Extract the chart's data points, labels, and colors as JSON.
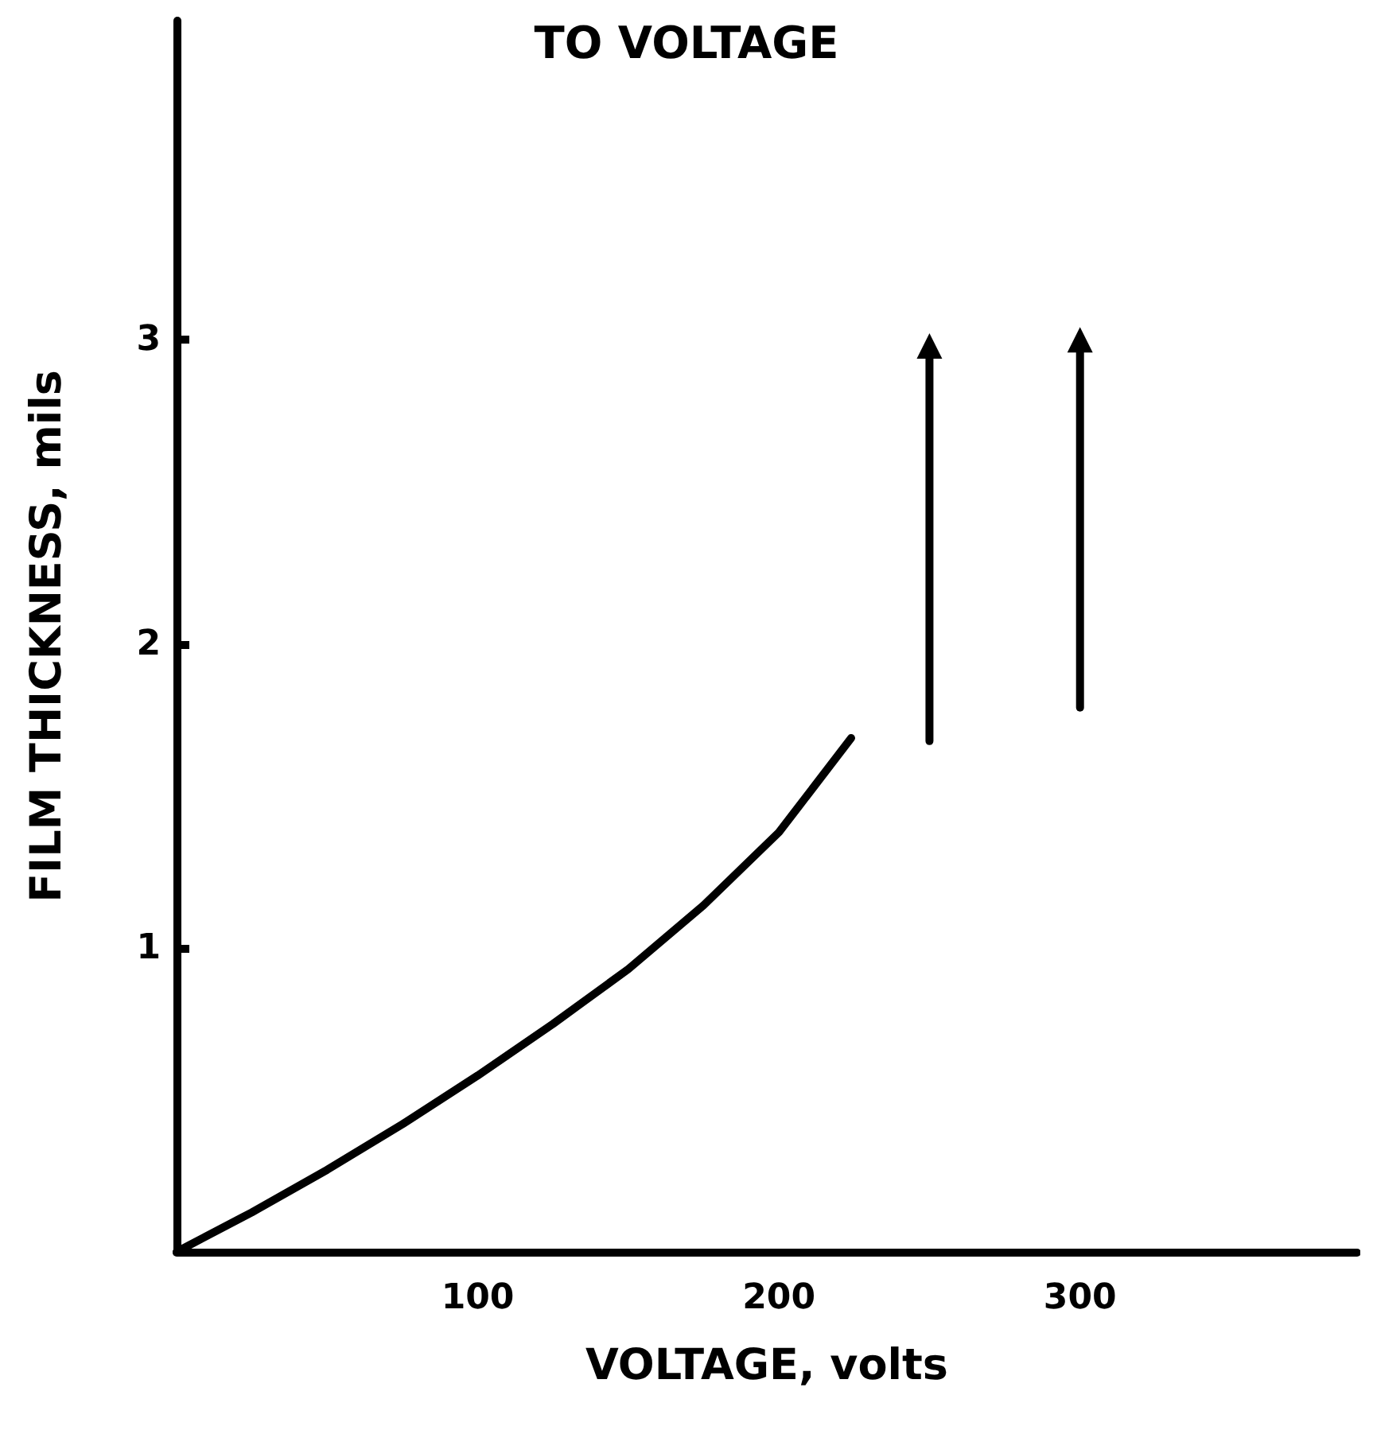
{
  "chart_data": {
    "type": "line",
    "title": "TO VOLTAGE",
    "xlabel": "VOLTAGE, volts",
    "ylabel": "FILM THICKNESS, mils",
    "xlim": [
      0,
      392
    ],
    "ylim": [
      0,
      4.05
    ],
    "xticks": [
      100,
      200,
      300
    ],
    "yticks": [
      1,
      2,
      3
    ],
    "grid": false,
    "series": [
      {
        "color": "#000000",
        "marker": "none",
        "x": [
          0,
          25,
          50,
          75,
          100,
          125,
          150,
          175,
          200,
          224
        ],
        "values": [
          0,
          0.13,
          0.27,
          0.42,
          0.58,
          0.75,
          0.93,
          1.14,
          1.38,
          1.69
        ]
      },
      {
        "color": "#000000",
        "marker": "triangle",
        "x": [
          250,
          250
        ],
        "values": [
          1.68,
          2.98
        ]
      },
      {
        "color": "#000000",
        "marker": "triangle",
        "x": [
          300,
          300
        ],
        "values": [
          1.79,
          3.0
        ]
      }
    ]
  }
}
